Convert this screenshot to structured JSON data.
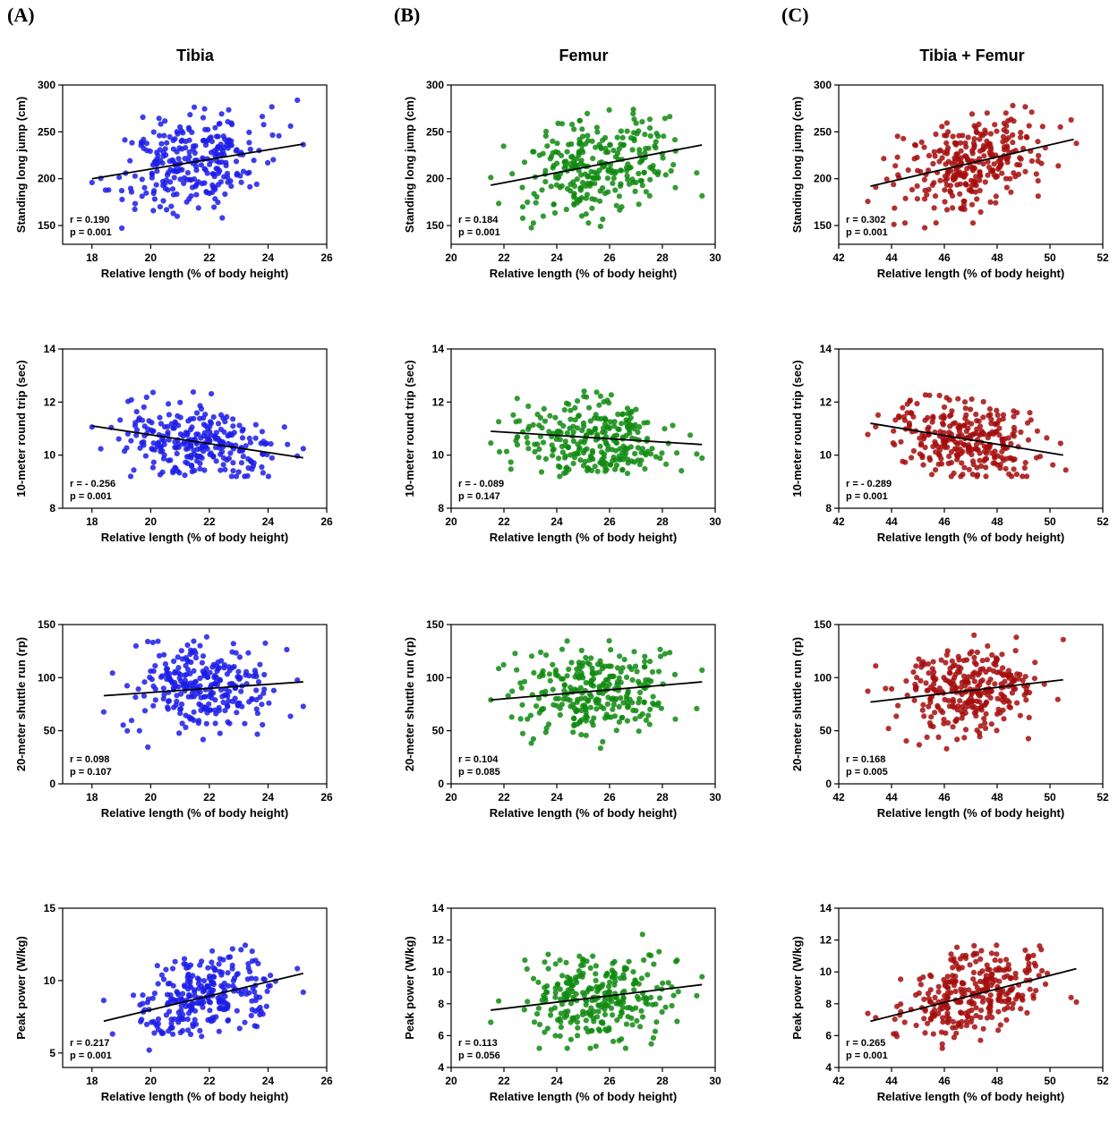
{
  "panels": [
    {
      "letter": "(A)",
      "title": "Tibia"
    },
    {
      "letter": "(B)",
      "title": "Femur"
    },
    {
      "letter": "(C)",
      "title": "Tibia + Femur"
    }
  ],
  "colors": {
    "tibia": "#1c1ce8",
    "femur": "#0f8a0f",
    "combined": "#a50d0d",
    "line": "#000000"
  },
  "chart_data": [
    {
      "type": "scatter",
      "column": "Tibia",
      "row": 1,
      "color": "tibia",
      "xlabel": "Relative length (% of body height)",
      "ylabel": "Standing long jump (cm)",
      "xlim": [
        17,
        26
      ],
      "ylim": [
        130,
        300
      ],
      "xticks": [
        18,
        20,
        22,
        24,
        26
      ],
      "yticks": [
        150,
        200,
        250,
        300
      ],
      "x_range": [
        18.0,
        25.2
      ],
      "y_range": [
        135,
        285
      ],
      "n": 270,
      "regression": [
        [
          18.0,
          200
        ],
        [
          25.2,
          237
        ]
      ],
      "r_text": "r = 0.190",
      "p_text": "p = 0.001",
      "seed": 11
    },
    {
      "type": "scatter",
      "column": "Femur",
      "row": 1,
      "color": "femur",
      "xlabel": "Relative length (% of body height)",
      "ylabel": "Standing long jump (cm)",
      "xlim": [
        20,
        30
      ],
      "ylim": [
        130,
        300
      ],
      "xticks": [
        20,
        22,
        24,
        26,
        28,
        30
      ],
      "yticks": [
        150,
        200,
        250,
        300
      ],
      "x_range": [
        21.5,
        29.5
      ],
      "y_range": [
        135,
        285
      ],
      "n": 280,
      "regression": [
        [
          21.5,
          193
        ],
        [
          29.5,
          236
        ]
      ],
      "r_text": "r = 0.184",
      "p_text": "p = 0.001",
      "seed": 12
    },
    {
      "type": "scatter",
      "column": "Tibia + Femur",
      "row": 1,
      "color": "combined",
      "xlabel": "Relative length (% of body height)",
      "ylabel": "Standing long jump (cm)",
      "xlim": [
        42,
        52
      ],
      "ylim": [
        130,
        300
      ],
      "xticks": [
        42,
        44,
        46,
        48,
        50,
        52
      ],
      "yticks": [
        150,
        200,
        250,
        300
      ],
      "x_range": [
        43.1,
        51.0
      ],
      "y_range": [
        135,
        285
      ],
      "n": 290,
      "regression": [
        [
          43.2,
          192
        ],
        [
          50.9,
          242
        ]
      ],
      "r_text": "r = 0.302",
      "p_text": "p = 0.001",
      "seed": 13
    },
    {
      "type": "scatter",
      "column": "Tibia",
      "row": 2,
      "color": "tibia",
      "xlabel": "Relative length (% of body height)",
      "ylabel": "10-meter round trip (sec)",
      "xlim": [
        17,
        26
      ],
      "ylim": [
        8,
        14
      ],
      "xticks": [
        18,
        20,
        22,
        24,
        26
      ],
      "yticks": [
        8,
        10,
        12,
        14
      ],
      "x_range": [
        18.0,
        25.2
      ],
      "y_range": [
        9.2,
        13.6
      ],
      "n": 270,
      "regression": [
        [
          18.0,
          11.1
        ],
        [
          25.2,
          9.9
        ]
      ],
      "r_text": "r = - 0.256",
      "p_text": "p = 0.001",
      "seed": 21
    },
    {
      "type": "scatter",
      "column": "Femur",
      "row": 2,
      "color": "femur",
      "xlabel": "Relative length (% of body height)",
      "ylabel": "10-meter round trip (sec)",
      "xlim": [
        20,
        30
      ],
      "ylim": [
        8,
        14
      ],
      "xticks": [
        20,
        22,
        24,
        26,
        28,
        30
      ],
      "yticks": [
        8,
        10,
        12,
        14
      ],
      "x_range": [
        21.5,
        29.5
      ],
      "y_range": [
        9.2,
        13.6
      ],
      "n": 280,
      "regression": [
        [
          21.5,
          10.9
        ],
        [
          29.5,
          10.4
        ]
      ],
      "r_text": "r = - 0.089",
      "p_text": "p = 0.147",
      "seed": 22
    },
    {
      "type": "scatter",
      "column": "Tibia + Femur",
      "row": 2,
      "color": "combined",
      "xlabel": "Relative length (% of body height)",
      "ylabel": "10-meter round trip (sec)",
      "xlim": [
        42,
        52
      ],
      "ylim": [
        8,
        14
      ],
      "xticks": [
        42,
        44,
        46,
        48,
        50,
        52
      ],
      "yticks": [
        8,
        10,
        12,
        14
      ],
      "x_range": [
        43.1,
        50.6
      ],
      "y_range": [
        9.2,
        13.6
      ],
      "n": 290,
      "regression": [
        [
          43.2,
          11.2
        ],
        [
          50.5,
          10.0
        ]
      ],
      "r_text": "r = - 0.289",
      "p_text": "p = 0.001",
      "seed": 23
    },
    {
      "type": "scatter",
      "column": "Tibia",
      "row": 3,
      "color": "tibia",
      "xlabel": "Relative length (% of body height)",
      "ylabel": "20-meter shuttle run (rp)",
      "xlim": [
        17,
        26
      ],
      "ylim": [
        0,
        150
      ],
      "xticks": [
        18,
        20,
        22,
        24,
        26
      ],
      "yticks": [
        0,
        50,
        100,
        150
      ],
      "x_range": [
        18.4,
        25.2
      ],
      "y_range": [
        17,
        140
      ],
      "n": 270,
      "regression": [
        [
          18.4,
          83
        ],
        [
          25.2,
          96
        ]
      ],
      "r_text": "r = 0.098",
      "p_text": "p = 0.107",
      "seed": 31
    },
    {
      "type": "scatter",
      "column": "Femur",
      "row": 3,
      "color": "femur",
      "xlabel": "Relative length (% of body height)",
      "ylabel": "20-meter shuttle run (rp)",
      "xlim": [
        20,
        30
      ],
      "ylim": [
        0,
        150
      ],
      "xticks": [
        20,
        22,
        24,
        26,
        28,
        30
      ],
      "yticks": [
        0,
        50,
        100,
        150
      ],
      "x_range": [
        21.5,
        29.5
      ],
      "y_range": [
        17,
        140
      ],
      "n": 280,
      "regression": [
        [
          21.5,
          79
        ],
        [
          29.5,
          96
        ]
      ],
      "r_text": "r = 0.104",
      "p_text": "p = 0.085",
      "seed": 32
    },
    {
      "type": "scatter",
      "column": "Tibia + Femur",
      "row": 3,
      "color": "combined",
      "xlabel": "Relative length (% of body height)",
      "ylabel": "20-meter shuttle run (rp)",
      "xlim": [
        42,
        52
      ],
      "ylim": [
        0,
        150
      ],
      "xticks": [
        42,
        44,
        46,
        48,
        50,
        52
      ],
      "yticks": [
        0,
        50,
        100,
        150
      ],
      "x_range": [
        43.1,
        50.5
      ],
      "y_range": [
        17,
        140
      ],
      "n": 290,
      "regression": [
        [
          43.2,
          77
        ],
        [
          50.5,
          98
        ]
      ],
      "r_text": "r = 0.168",
      "p_text": "p = 0.005",
      "seed": 33
    },
    {
      "type": "scatter",
      "column": "Tibia",
      "row": 4,
      "color": "tibia",
      "xlabel": "Relative length (% of body height)",
      "ylabel": "Peak power (W/kg)",
      "xlim": [
        17,
        26
      ],
      "ylim": [
        4,
        15
      ],
      "xticks": [
        18,
        20,
        22,
        24,
        26
      ],
      "yticks": [
        5,
        10,
        15
      ],
      "x_range": [
        18.4,
        25.2
      ],
      "y_range": [
        5.2,
        13.1
      ],
      "n": 270,
      "regression": [
        [
          18.4,
          7.2
        ],
        [
          25.2,
          10.5
        ]
      ],
      "r_text": "r = 0.217",
      "p_text": "p = 0.001",
      "seed": 41
    },
    {
      "type": "scatter",
      "column": "Femur",
      "row": 4,
      "color": "femur",
      "xlabel": "Relative length (% of body height)",
      "ylabel": "Peak power (W/kg)",
      "xlim": [
        20,
        30
      ],
      "ylim": [
        4,
        14
      ],
      "xticks": [
        20,
        22,
        24,
        26,
        28,
        30
      ],
      "yticks": [
        4,
        6,
        8,
        10,
        12,
        14
      ],
      "x_range": [
        21.5,
        29.5
      ],
      "y_range": [
        5.2,
        13.1
      ],
      "n": 280,
      "regression": [
        [
          21.5,
          7.6
        ],
        [
          29.5,
          9.2
        ]
      ],
      "r_text": "r = 0.113",
      "p_text": "p = 0.056",
      "seed": 42
    },
    {
      "type": "scatter",
      "column": "Tibia + Femur",
      "row": 4,
      "color": "combined",
      "xlabel": "Relative length (% of body height)",
      "ylabel": "Peak power (W/kg)",
      "xlim": [
        42,
        52
      ],
      "ylim": [
        4,
        14
      ],
      "xticks": [
        42,
        44,
        46,
        48,
        50,
        52
      ],
      "yticks": [
        4,
        6,
        8,
        10,
        12,
        14
      ],
      "x_range": [
        43.1,
        51.0
      ],
      "y_range": [
        5.2,
        13.1
      ],
      "n": 290,
      "regression": [
        [
          43.2,
          6.9
        ],
        [
          51.0,
          10.2
        ]
      ],
      "r_text": "r = 0.265",
      "p_text": "p = 0.001",
      "seed": 43
    }
  ]
}
